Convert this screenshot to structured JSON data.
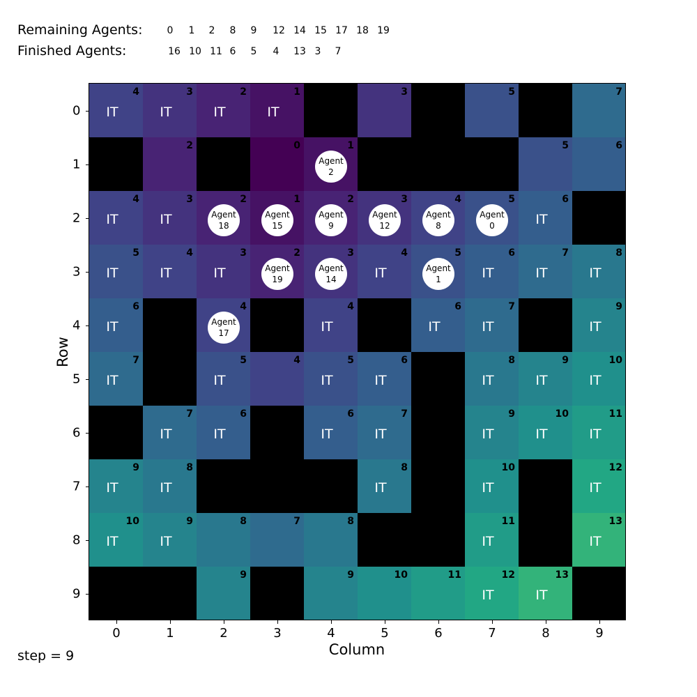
{
  "header": {
    "remaining_label": "Remaining Agents:",
    "finished_label": "Finished Agents:",
    "remaining": [
      "0",
      "1",
      "2",
      "8",
      "9",
      "12",
      "14",
      "15",
      "17",
      "18",
      "19"
    ],
    "finished": [
      "16",
      "10",
      "11",
      "6",
      "5",
      "4",
      "13",
      "3",
      "7"
    ]
  },
  "axes": {
    "xlabel": "Column",
    "ylabel": "Row",
    "xticks": [
      "0",
      "1",
      "2",
      "3",
      "4",
      "5",
      "6",
      "7",
      "8",
      "9"
    ],
    "yticks": [
      "0",
      "1",
      "2",
      "3",
      "4",
      "5",
      "6",
      "7",
      "8",
      "9"
    ]
  },
  "step_text": "step = 9",
  "it_text": "IT",
  "agent_word": "Agent",
  "colors": {
    "wall": "#000000",
    "colormap": "viridis",
    "agent": "#ffffff",
    "it_text": "#ffffff"
  },
  "grid": [
    [
      {
        "d": 4,
        "it": true
      },
      {
        "d": 3,
        "it": true
      },
      {
        "d": 2,
        "it": true
      },
      {
        "d": 1,
        "it": true
      },
      {
        "wall": true
      },
      {
        "d": 3
      },
      {
        "wall": true
      },
      {
        "d": 5
      },
      {
        "wall": true
      },
      {
        "d": 7
      }
    ],
    [
      {
        "wall": true
      },
      {
        "d": 2
      },
      {
        "wall": true
      },
      {
        "d": 0
      },
      {
        "d": 1,
        "agent": "2"
      },
      {
        "wall": true
      },
      {
        "wall": true
      },
      {
        "wall": true
      },
      {
        "d": 5
      },
      {
        "d": 6
      }
    ],
    [
      {
        "d": 4,
        "it": true
      },
      {
        "d": 3,
        "it": true
      },
      {
        "d": 2,
        "agent": "18"
      },
      {
        "d": 1,
        "agent": "15"
      },
      {
        "d": 2,
        "agent": "9"
      },
      {
        "d": 3,
        "agent": "12"
      },
      {
        "d": 4,
        "agent": "8"
      },
      {
        "d": 5,
        "agent": "0"
      },
      {
        "d": 6,
        "it": true
      },
      {
        "wall": true
      }
    ],
    [
      {
        "d": 5,
        "it": true
      },
      {
        "d": 4,
        "it": true
      },
      {
        "d": 3,
        "it": true
      },
      {
        "d": 2,
        "agent": "19"
      },
      {
        "d": 3,
        "agent": "14"
      },
      {
        "d": 4,
        "it": true
      },
      {
        "d": 5,
        "agent": "1"
      },
      {
        "d": 6,
        "it": true
      },
      {
        "d": 7,
        "it": true
      },
      {
        "d": 8,
        "it": true
      }
    ],
    [
      {
        "d": 6,
        "it": true
      },
      {
        "wall": true
      },
      {
        "d": 4,
        "agent": "17"
      },
      {
        "wall": true
      },
      {
        "d": 4,
        "it": true
      },
      {
        "wall": true
      },
      {
        "d": 6,
        "it": true
      },
      {
        "d": 7,
        "it": true
      },
      {
        "wall": true
      },
      {
        "d": 9,
        "it": true
      }
    ],
    [
      {
        "d": 7,
        "it": true
      },
      {
        "wall": true
      },
      {
        "d": 5,
        "it": true
      },
      {
        "d": 4
      },
      {
        "d": 5,
        "it": true
      },
      {
        "d": 6,
        "it": true
      },
      {
        "wall": true
      },
      {
        "d": 8,
        "it": true
      },
      {
        "d": 9,
        "it": true
      },
      {
        "d": 10,
        "it": true
      }
    ],
    [
      {
        "wall": true
      },
      {
        "d": 7,
        "it": true
      },
      {
        "d": 6,
        "it": true
      },
      {
        "wall": true
      },
      {
        "d": 6,
        "it": true
      },
      {
        "d": 7,
        "it": true
      },
      {
        "wall": true
      },
      {
        "d": 9,
        "it": true
      },
      {
        "d": 10,
        "it": true
      },
      {
        "d": 11,
        "it": true
      }
    ],
    [
      {
        "d": 9,
        "it": true
      },
      {
        "d": 8,
        "it": true
      },
      {
        "wall": true
      },
      {
        "wall": true
      },
      {
        "wall": true
      },
      {
        "d": 8,
        "it": true
      },
      {
        "wall": true
      },
      {
        "d": 10,
        "it": true
      },
      {
        "wall": true
      },
      {
        "d": 12,
        "it": true
      }
    ],
    [
      {
        "d": 10,
        "it": true
      },
      {
        "d": 9,
        "it": true
      },
      {
        "d": 8
      },
      {
        "d": 7
      },
      {
        "d": 8
      },
      {
        "wall": true
      },
      {
        "wall": true
      },
      {
        "d": 11,
        "it": true
      },
      {
        "wall": true
      },
      {
        "d": 13,
        "it": true
      }
    ],
    [
      {
        "wall": true
      },
      {
        "wall": true
      },
      {
        "d": 9
      },
      {
        "wall": true
      },
      {
        "d": 9
      },
      {
        "d": 10
      },
      {
        "d": 11
      },
      {
        "d": 12,
        "it": true
      },
      {
        "d": 13,
        "it": true
      },
      {
        "wall": true
      }
    ]
  ]
}
